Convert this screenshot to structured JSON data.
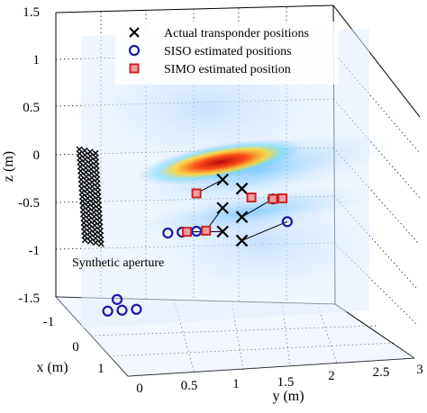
{
  "chart_data": {
    "type": "scatter3d",
    "title": "",
    "axes": {
      "x": {
        "label": "x (m)",
        "ticks": [
          "-1",
          "0",
          "1"
        ],
        "range": [
          -1.5,
          1.5
        ]
      },
      "y": {
        "label": "y (m)",
        "ticks": [
          "0",
          "0.5",
          "1",
          "1.5",
          "2",
          "2.5",
          "3"
        ],
        "range": [
          0,
          3
        ]
      },
      "z": {
        "label": "z (m)",
        "ticks": [
          "1.5",
          "1",
          "0.5",
          "0",
          "-0.5",
          "-1",
          "-1.5"
        ],
        "range": [
          -1.5,
          1.5
        ]
      }
    },
    "grid": true,
    "legend": {
      "placement": "top-right",
      "entries": [
        {
          "label": "Actual transponder positions",
          "marker": "x",
          "color": "#000000"
        },
        {
          "label": "SISO estimated positions",
          "marker": "circle",
          "color": "#1a1aa6"
        },
        {
          "label": "SIMO estimated position",
          "marker": "square",
          "color": "#cc2222"
        }
      ]
    },
    "annotations": [
      {
        "text": "Synthetic aperture"
      }
    ],
    "heatmap": {
      "description": "",
      "colormap": "jet-transparent"
    },
    "series": [
      {
        "name": "Actual transponder positions",
        "marker": "x",
        "points": [
          {
            "x": -0.1,
            "y": 1.55,
            "z": 0.0
          },
          {
            "x": -0.1,
            "y": 1.55,
            "z": -0.3
          },
          {
            "x": -0.1,
            "y": 1.55,
            "z": -0.55
          },
          {
            "x": 0.1,
            "y": 1.4,
            "z": 0.05
          },
          {
            "x": 0.1,
            "y": 1.4,
            "z": -0.25
          },
          {
            "x": 0.1,
            "y": 1.4,
            "z": -0.5
          }
        ]
      },
      {
        "name": "SISO estimated positions",
        "marker": "circle",
        "points": [
          {
            "x": -0.2,
            "y": 1.85,
            "z": -0.1
          },
          {
            "x": -0.2,
            "y": 2.0,
            "z": -0.35
          },
          {
            "x": 0.0,
            "y": 1.1,
            "z": -0.45
          },
          {
            "x": 0.0,
            "y": 0.95,
            "z": -0.45
          },
          {
            "x": 0.0,
            "y": 0.8,
            "z": -0.45
          },
          {
            "x": 0.9,
            "y": 0.4,
            "z": -1.5
          },
          {
            "x": 0.9,
            "y": 0.55,
            "z": -1.5
          },
          {
            "x": 0.9,
            "y": 0.7,
            "z": -1.5
          },
          {
            "x": 1.3,
            "y": 0.6,
            "z": -1.5
          }
        ]
      },
      {
        "name": "SIMO estimated position",
        "marker": "square",
        "points": [
          {
            "x": 0.0,
            "y": 1.1,
            "z": -0.05
          },
          {
            "x": -0.1,
            "y": 1.65,
            "z": -0.1
          },
          {
            "x": -0.2,
            "y": 1.85,
            "z": -0.1
          },
          {
            "x": -0.2,
            "y": 1.95,
            "z": -0.1
          },
          {
            "x": 0.0,
            "y": 1.2,
            "z": -0.45
          },
          {
            "x": 0.0,
            "y": 1.0,
            "z": -0.45
          }
        ]
      }
    ]
  }
}
